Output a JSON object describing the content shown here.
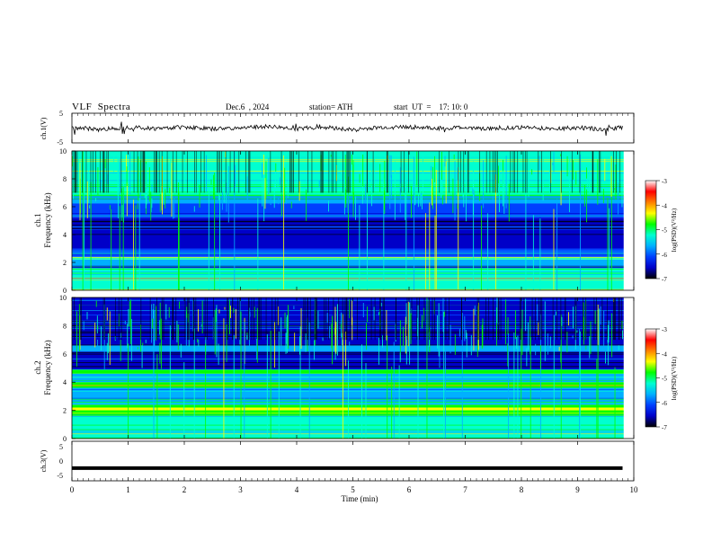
{
  "header": {
    "title": "VLF  Spectra",
    "date": "Dec.6  , 2024",
    "station": "station= ATH",
    "start_ut": "start  UT  =    17: 10: 0"
  },
  "colors": {
    "colormap": [
      "#000000",
      "#0000c8",
      "#0040ff",
      "#00b0ff",
      "#00ffd0",
      "#00ff00",
      "#ffff00",
      "#ff8000",
      "#ff0000",
      "#ffffff"
    ],
    "waveform": "#000000"
  },
  "chart_data": [
    {
      "type": "line",
      "panel": "ch1-waveform",
      "ylabel": "ch.1(V)",
      "ylim": [
        -5,
        5
      ],
      "yticks": [
        "5",
        "-5"
      ],
      "xlim": [
        0,
        10
      ],
      "x": [
        0,
        0.5,
        1,
        1.5,
        2,
        2.5,
        3,
        3.5,
        4,
        4.5,
        5,
        5.5,
        6,
        6.5,
        7,
        7.5,
        8,
        8.5,
        9,
        9.5,
        9.8
      ],
      "y": [
        0.2,
        -0.5,
        0.3,
        -0.2,
        0.4,
        -0.3,
        0.1,
        0.5,
        -0.2,
        0.3,
        -0.6,
        0.2,
        0.4,
        -0.1,
        0.2,
        -0.3,
        0.3,
        -0.2,
        0.1,
        -0.4,
        0.2
      ]
    },
    {
      "type": "heatmap",
      "panel": "ch1-spectrogram",
      "ylabel_top": "ch.1",
      "ylabel": "Frequency (kHz)",
      "ylim": [
        0,
        10
      ],
      "yticks": [
        "0",
        "2",
        "4",
        "6",
        "8",
        "10"
      ],
      "xlim": [
        0,
        10
      ],
      "colorbar": {
        "label": "log(PSD)(V²/Hz)",
        "range": [
          -7,
          -3
        ],
        "ticks": [
          "-3",
          "-4",
          "-5",
          "-6",
          "-7"
        ]
      },
      "bands": [
        [
          0,
          1.0,
          -4.8
        ],
        [
          1.0,
          1.6,
          -5.2
        ],
        [
          1.6,
          2.2,
          -5.6
        ],
        [
          2.2,
          2.4,
          -4.9
        ],
        [
          2.4,
          3.0,
          -6.0
        ],
        [
          3.0,
          5.2,
          -6.4
        ],
        [
          5.2,
          6.2,
          -5.9
        ],
        [
          6.2,
          6.8,
          -5.3
        ],
        [
          6.8,
          8.0,
          -5.0
        ],
        [
          8.0,
          10.0,
          -4.9
        ]
      ]
    },
    {
      "type": "heatmap",
      "panel": "ch2-spectrogram",
      "ylabel_top": "ch.2",
      "ylabel": "Frequency (kHz)",
      "ylim": [
        0,
        10
      ],
      "yticks": [
        "0",
        "2",
        "4",
        "6",
        "8",
        "10"
      ],
      "xlim": [
        0,
        10
      ],
      "colorbar": {
        "label": "log(PSD)(V²/Hz)",
        "range": [
          -7,
          -3
        ],
        "ticks": [
          "-3",
          "-4",
          "-5",
          "-6",
          "-7"
        ]
      },
      "bands": [
        [
          0,
          1.6,
          -5.0
        ],
        [
          1.6,
          2.4,
          -4.7
        ],
        [
          2.0,
          2.2,
          -4.1
        ],
        [
          2.4,
          3.6,
          -5.3
        ],
        [
          3.6,
          4.0,
          -4.5
        ],
        [
          4.0,
          4.6,
          -5.4
        ],
        [
          4.6,
          4.9,
          -4.6
        ],
        [
          4.9,
          6.2,
          -6.2
        ],
        [
          6.2,
          6.6,
          -5.6
        ],
        [
          6.6,
          10.0,
          -6.4
        ]
      ]
    },
    {
      "type": "line",
      "panel": "ch3-waveform",
      "ylabel": "ch.3(V)",
      "ylim": [
        -5,
        5
      ],
      "yticks": [
        "5",
        "0",
        "-5"
      ],
      "xlim": [
        0,
        10
      ],
      "x": [
        0,
        9.8
      ],
      "y": [
        -1.8,
        -1.8
      ]
    }
  ],
  "x_axis": {
    "label": "Time  (min)",
    "ticks": [
      "0",
      "1",
      "2",
      "3",
      "4",
      "5",
      "6",
      "7",
      "8",
      "9",
      "10"
    ]
  }
}
